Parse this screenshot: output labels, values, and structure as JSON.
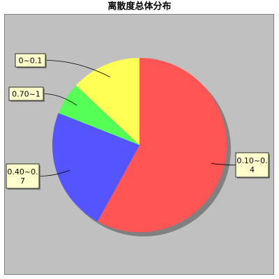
{
  "chart_data": {
    "type": "pie",
    "title": "离散度总体分布",
    "slices": [
      {
        "label": "0.10~0.4",
        "label_lines": [
          "0.10~0.",
          "4"
        ],
        "value": 58,
        "color": "#ff5555"
      },
      {
        "label": "0.40~0.7",
        "label_lines": [
          "0.40~0.",
          "7"
        ],
        "value": 23,
        "color": "#5555ff"
      },
      {
        "label": "0.70~1",
        "label_lines": [
          "0.70~1"
        ],
        "value": 6,
        "color": "#55ff55"
      },
      {
        "label": "0~0.1",
        "label_lines": [
          "0~0.1"
        ],
        "value": 13,
        "color": "#ffff55"
      }
    ],
    "start_position": "top",
    "direction": "clockwise",
    "plot_background": "#c0c0c0",
    "label_box_color": "#ffffcc"
  }
}
